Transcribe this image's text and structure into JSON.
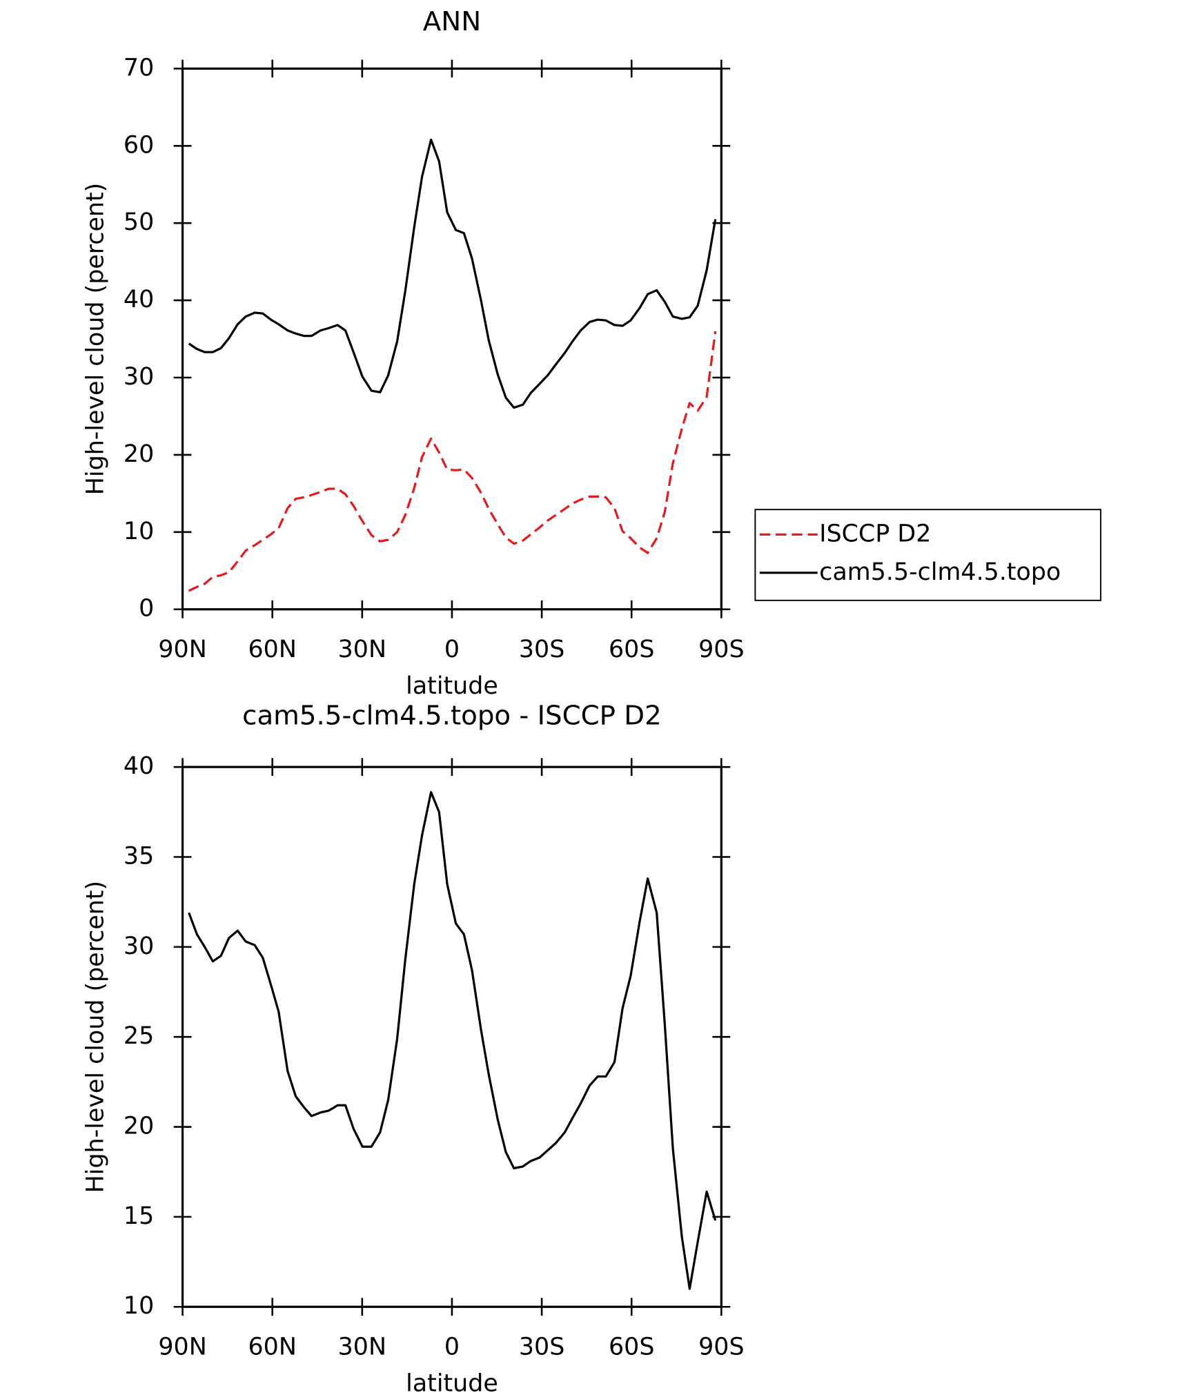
{
  "chart_data": [
    {
      "type": "line",
      "title": "ANN",
      "x_label": "latitude",
      "y_label": "High-level cloud (percent)",
      "x": [
        87.9,
        85.2,
        82.6,
        79.9,
        77.2,
        74.5,
        71.6,
        68.9,
        65.9,
        63.2,
        60.5,
        57.9,
        54.9,
        52.2,
        49.5,
        46.9,
        43.9,
        41.2,
        38.2,
        35.6,
        32.9,
        29.9,
        26.9,
        24.0,
        21.3,
        18.3,
        15.6,
        12.6,
        10.0,
        7.0,
        4.3,
        1.6,
        -1.3,
        -4.0,
        -6.7,
        -9.7,
        -12.3,
        -15.3,
        -18.0,
        -20.7,
        -23.7,
        -26.3,
        -29.3,
        -32.0,
        -34.7,
        -37.7,
        -40.3,
        -43.0,
        -46.0,
        -48.7,
        -51.4,
        -54.3,
        -57.0,
        -59.7,
        -62.7,
        -65.4,
        -68.4,
        -71.1,
        -73.8,
        -76.8,
        -79.4,
        -82.1,
        -85.1,
        -88.0
      ],
      "series": [
        {
          "name": "ISCCP D2",
          "color": "#e41a1c",
          "line_style": "dashed",
          "values": [
            2.4,
            2.9,
            3.3,
            4.2,
            4.4,
            4.8,
            6.2,
            7.6,
            8.3,
            9.0,
            9.7,
            10.5,
            13.1,
            14.3,
            14.5,
            14.8,
            15.2,
            15.6,
            15.6,
            14.9,
            13.4,
            11.4,
            9.6,
            8.8,
            9.0,
            10.0,
            12.2,
            15.7,
            19.7,
            22.1,
            20.3,
            18.1,
            18.0,
            18.1,
            17.0,
            15.1,
            13.0,
            11.0,
            9.3,
            8.5,
            8.9,
            9.7,
            10.6,
            11.5,
            12.2,
            13.0,
            13.7,
            14.2,
            14.6,
            14.6,
            14.5,
            13.1,
            10.1,
            9.2,
            8.0,
            7.3,
            9.2,
            12.6,
            18.9,
            23.4,
            26.7,
            25.7,
            27.5,
            36.0
          ]
        },
        {
          "name": "cam5.5-clm4.5.topo",
          "color": "#000000",
          "line_style": "solid",
          "values": [
            34.4,
            33.7,
            33.3,
            33.3,
            33.8,
            35.1,
            36.9,
            37.9,
            38.4,
            38.3,
            37.5,
            36.9,
            36.1,
            35.7,
            35.4,
            35.4,
            36.1,
            36.4,
            36.8,
            36.1,
            33.3,
            30.1,
            28.3,
            28.1,
            30.3,
            34.7,
            41.2,
            49.5,
            56.0,
            60.8,
            58.0,
            51.4,
            49.1,
            48.7,
            45.4,
            40.0,
            34.8,
            30.4,
            27.4,
            26.1,
            26.5,
            28.0,
            29.2,
            30.3,
            31.7,
            33.2,
            34.7,
            36.1,
            37.2,
            37.5,
            37.4,
            36.8,
            36.7,
            37.4,
            39.0,
            40.8,
            41.3,
            39.8,
            37.9,
            37.6,
            37.8,
            39.3,
            43.9,
            50.5
          ]
        }
      ],
      "xlim": [
        90,
        -90
      ],
      "xticks": [
        {
          "value": 90,
          "label": "90N"
        },
        {
          "value": 60,
          "label": "60N"
        },
        {
          "value": 30,
          "label": "30N"
        },
        0,
        {
          "value": -30,
          "label": "30S"
        },
        {
          "value": -60,
          "label": "60S"
        },
        {
          "value": -90,
          "label": "90S"
        }
      ],
      "ylim": [
        0,
        70
      ],
      "yticks": [
        0,
        10,
        20,
        30,
        40,
        50,
        60,
        70
      ],
      "legend": "right"
    },
    {
      "type": "line",
      "title": "cam5.5-clm4.5.topo - ISCCP D2",
      "x_label": "latitude",
      "y_label": "High-level cloud (percent)",
      "x": [
        87.9,
        85.2,
        82.6,
        79.9,
        77.2,
        74.5,
        71.6,
        68.9,
        65.9,
        63.2,
        60.5,
        57.9,
        54.9,
        52.2,
        49.5,
        46.9,
        43.9,
        41.2,
        38.2,
        35.6,
        32.9,
        29.9,
        26.9,
        24.0,
        21.3,
        18.3,
        15.6,
        12.6,
        10.0,
        7.0,
        4.3,
        1.6,
        -1.3,
        -4.0,
        -6.7,
        -9.7,
        -12.3,
        -15.3,
        -18.0,
        -20.7,
        -23.7,
        -26.3,
        -29.3,
        -32.0,
        -34.7,
        -37.7,
        -40.3,
        -43.0,
        -46.0,
        -48.7,
        -51.4,
        -54.3,
        -57.0,
        -59.7,
        -62.7,
        -65.4,
        -68.4,
        -71.1,
        -73.8,
        -76.8,
        -79.4,
        -82.1,
        -85.1,
        -88.0
      ],
      "series": [
        {
          "color": "#000000",
          "line_style": "solid",
          "values": [
            31.9,
            30.7,
            30.0,
            29.2,
            29.5,
            30.5,
            30.9,
            30.3,
            30.1,
            29.4,
            27.9,
            26.4,
            23.1,
            21.7,
            21.1,
            20.6,
            20.8,
            20.9,
            21.2,
            21.2,
            19.9,
            18.9,
            18.9,
            19.7,
            21.5,
            24.9,
            29.3,
            33.5,
            36.2,
            38.6,
            37.5,
            33.5,
            31.3,
            30.7,
            28.7,
            25.4,
            22.9,
            20.4,
            18.6,
            17.7,
            17.8,
            18.1,
            18.3,
            18.7,
            19.1,
            19.7,
            20.5,
            21.3,
            22.3,
            22.8,
            22.8,
            23.6,
            26.6,
            28.4,
            31.4,
            33.8,
            31.9,
            25.7,
            18.8,
            13.9,
            11.0,
            13.6,
            16.4,
            14.8
          ]
        }
      ],
      "xlim": [
        90,
        -90
      ],
      "xticks": [
        {
          "value": 90,
          "label": "90N"
        },
        {
          "value": 60,
          "label": "60N"
        },
        {
          "value": 30,
          "label": "30N"
        },
        0,
        {
          "value": -30,
          "label": "30S"
        },
        {
          "value": -60,
          "label": "60S"
        },
        {
          "value": -90,
          "label": "90S"
        }
      ],
      "ylim": [
        10,
        40
      ],
      "yticks": [
        10,
        15,
        20,
        25,
        30,
        35,
        40
      ]
    }
  ]
}
